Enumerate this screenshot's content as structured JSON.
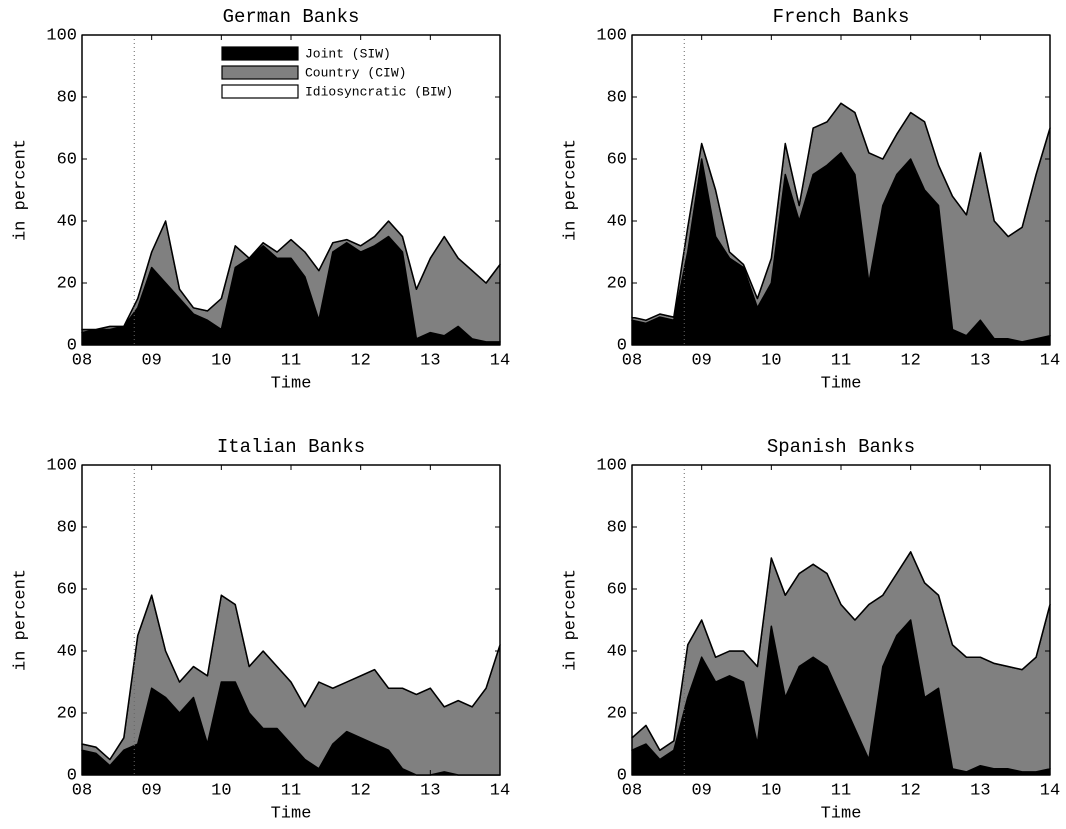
{
  "chart_data": [
    {
      "type": "stacked-area",
      "title": "German Banks",
      "xlabel": "Time",
      "ylabel": "in percent",
      "x": [
        8,
        8.2,
        8.4,
        8.6,
        8.8,
        9,
        9.2,
        9.4,
        9.6,
        9.8,
        10,
        10.2,
        10.4,
        10.6,
        10.8,
        11,
        11.2,
        11.4,
        11.6,
        11.8,
        12,
        12.2,
        12.4,
        12.6,
        12.8,
        13,
        13.2,
        13.4,
        13.6,
        13.8,
        14
      ],
      "series": [
        {
          "name": "Joint (SIW)",
          "color": "#000000",
          "values": [
            4,
            5,
            5,
            6,
            12,
            25,
            20,
            15,
            10,
            8,
            5,
            25,
            28,
            32,
            28,
            28,
            22,
            8,
            30,
            33,
            30,
            32,
            35,
            30,
            2,
            4,
            3,
            6,
            2,
            1,
            1
          ]
        },
        {
          "name": "Country (CIW)",
          "color": "#808080",
          "values": [
            1,
            0,
            1,
            0,
            3,
            5,
            20,
            3,
            2,
            3,
            10,
            7,
            0,
            1,
            2,
            6,
            8,
            16,
            3,
            1,
            2,
            3,
            5,
            5,
            16,
            24,
            32,
            22,
            22,
            19,
            25
          ]
        },
        {
          "name": "Idiosyncratic (BIW)",
          "color": "#ffffff",
          "values": [
            95,
            95,
            94,
            94,
            85,
            70,
            60,
            82,
            88,
            89,
            85,
            68,
            72,
            67,
            70,
            66,
            70,
            76,
            67,
            66,
            68,
            65,
            60,
            65,
            82,
            72,
            65,
            72,
            76,
            80,
            74
          ]
        }
      ],
      "xlim": [
        8,
        14
      ],
      "xticks": [
        {
          "value": 8,
          "label": "08"
        },
        {
          "value": 9,
          "label": "09"
        },
        10,
        11,
        12,
        13,
        14
      ],
      "ylim": [
        0,
        100
      ],
      "yticks": [
        0,
        20,
        40,
        60,
        80,
        100
      ],
      "vline": 8.75,
      "legend": "upper center"
    },
    {
      "type": "stacked-area",
      "title": "French Banks",
      "xlabel": "Time",
      "ylabel": "in percent",
      "x": [
        8,
        8.2,
        8.4,
        8.6,
        8.8,
        9,
        9.2,
        9.4,
        9.6,
        9.8,
        10,
        10.2,
        10.4,
        10.6,
        10.8,
        11,
        11.2,
        11.4,
        11.6,
        11.8,
        12,
        12.2,
        12.4,
        12.6,
        12.8,
        13,
        13.2,
        13.4,
        13.6,
        13.8,
        14
      ],
      "series": [
        {
          "color": "#000000",
          "values": [
            8,
            7,
            9,
            8,
            30,
            60,
            35,
            28,
            25,
            12,
            20,
            55,
            40,
            55,
            58,
            62,
            55,
            20,
            45,
            55,
            60,
            50,
            45,
            5,
            3,
            8,
            2,
            2,
            1,
            2,
            3
          ]
        },
        {
          "color": "#808080",
          "values": [
            1,
            1,
            1,
            1,
            8,
            5,
            15,
            2,
            1,
            3,
            8,
            10,
            5,
            15,
            14,
            16,
            20,
            42,
            15,
            13,
            15,
            22,
            13,
            43,
            39,
            54,
            38,
            33,
            37,
            53,
            67
          ]
        },
        {
          "color": "#ffffff",
          "values": [
            91,
            92,
            90,
            91,
            62,
            35,
            50,
            70,
            74,
            85,
            72,
            35,
            55,
            30,
            28,
            22,
            25,
            38,
            40,
            32,
            25,
            28,
            42,
            52,
            58,
            38,
            60,
            65,
            62,
            45,
            30
          ]
        }
      ],
      "xlim": [
        8,
        14
      ],
      "xticks": [
        {
          "value": 8,
          "label": "08"
        },
        {
          "value": 9,
          "label": "09"
        },
        10,
        11,
        12,
        13,
        14
      ],
      "ylim": [
        0,
        100
      ],
      "yticks": [
        0,
        20,
        40,
        60,
        80,
        100
      ],
      "vline": 8.75
    },
    {
      "type": "stacked-area",
      "title": "Italian Banks",
      "xlabel": "Time",
      "ylabel": "in percent",
      "x": [
        8,
        8.2,
        8.4,
        8.6,
        8.8,
        9,
        9.2,
        9.4,
        9.6,
        9.8,
        10,
        10.2,
        10.4,
        10.6,
        10.8,
        11,
        11.2,
        11.4,
        11.6,
        11.8,
        12,
        12.2,
        12.4,
        12.6,
        12.8,
        13,
        13.2,
        13.4,
        13.6,
        13.8,
        14
      ],
      "series": [
        {
          "color": "#000000",
          "values": [
            8,
            7,
            3,
            8,
            10,
            28,
            25,
            20,
            25,
            10,
            30,
            30,
            20,
            15,
            15,
            10,
            5,
            2,
            10,
            14,
            12,
            10,
            8,
            2,
            0,
            0,
            1,
            0,
            0,
            0,
            0
          ]
        },
        {
          "color": "#808080",
          "values": [
            2,
            2,
            2,
            4,
            35,
            30,
            15,
            10,
            10,
            22,
            28,
            25,
            15,
            25,
            20,
            20,
            17,
            28,
            18,
            16,
            20,
            24,
            20,
            26,
            26,
            28,
            21,
            24,
            22,
            28,
            42
          ]
        },
        {
          "color": "#ffffff",
          "values": [
            90,
            91,
            95,
            88,
            55,
            42,
            60,
            70,
            65,
            68,
            42,
            45,
            65,
            60,
            65,
            70,
            78,
            70,
            72,
            70,
            68,
            66,
            72,
            72,
            74,
            72,
            78,
            76,
            78,
            72,
            58
          ]
        }
      ],
      "xlim": [
        8,
        14
      ],
      "xticks": [
        {
          "value": 8,
          "label": "08"
        },
        {
          "value": 9,
          "label": "09"
        },
        10,
        11,
        12,
        13,
        14
      ],
      "ylim": [
        0,
        100
      ],
      "yticks": [
        0,
        20,
        40,
        60,
        80,
        100
      ],
      "vline": 8.75
    },
    {
      "type": "stacked-area",
      "title": "Spanish Banks",
      "xlabel": "Time",
      "ylabel": "in percent",
      "x": [
        8,
        8.2,
        8.4,
        8.6,
        8.8,
        9,
        9.2,
        9.4,
        9.6,
        9.8,
        10,
        10.2,
        10.4,
        10.6,
        10.8,
        11,
        11.2,
        11.4,
        11.6,
        11.8,
        12,
        12.2,
        12.4,
        12.6,
        12.8,
        13,
        13.2,
        13.4,
        13.6,
        13.8,
        14
      ],
      "series": [
        {
          "color": "#000000",
          "values": [
            8,
            10,
            5,
            8,
            25,
            38,
            30,
            32,
            30,
            10,
            48,
            25,
            35,
            38,
            35,
            25,
            15,
            5,
            35,
            45,
            50,
            25,
            28,
            2,
            1,
            3,
            2,
            2,
            1,
            1,
            2
          ]
        },
        {
          "color": "#808080",
          "values": [
            4,
            6,
            3,
            3,
            17,
            12,
            8,
            8,
            10,
            25,
            22,
            33,
            30,
            30,
            30,
            30,
            35,
            50,
            23,
            20,
            22,
            37,
            30,
            40,
            37,
            35,
            34,
            33,
            33,
            37,
            53
          ]
        },
        {
          "color": "#ffffff",
          "values": [
            88,
            84,
            92,
            89,
            58,
            50,
            62,
            60,
            60,
            65,
            30,
            42,
            35,
            32,
            35,
            45,
            50,
            45,
            42,
            35,
            28,
            38,
            42,
            58,
            62,
            62,
            64,
            65,
            66,
            62,
            45
          ]
        }
      ],
      "xlim": [
        8,
        14
      ],
      "xticks": [
        {
          "value": 8,
          "label": "08"
        },
        {
          "value": 9,
          "label": "09"
        },
        10,
        11,
        12,
        13,
        14
      ],
      "ylim": [
        0,
        100
      ],
      "yticks": [
        0,
        20,
        40,
        60,
        80,
        100
      ],
      "vline": 8.75
    }
  ]
}
